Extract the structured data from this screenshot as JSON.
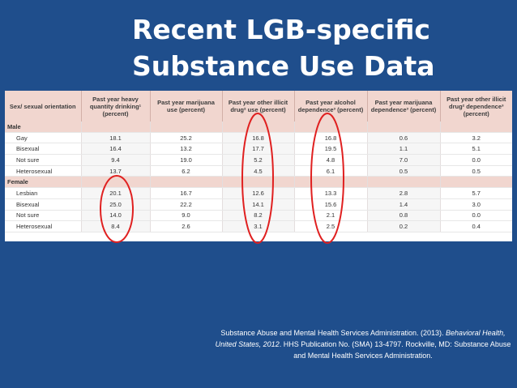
{
  "slide": {
    "title_line1": "Recent LGB-specific",
    "title_line2": "Substance Use Data"
  },
  "table": {
    "headers": [
      "Sex/ sexual orientation",
      "Past year heavy quantity drinking¹ (percent)",
      "Past year marijuana use (percent)",
      "Past year other illicit drug² use (percent)",
      "Past year alcohol dependence³ (percent)",
      "Past year marijuana dependence³ (percent)",
      "Past year other illicit drug² dependence³ (percent)"
    ],
    "groups": [
      {
        "label": "Male",
        "rows": [
          [
            "Gay",
            "18.1",
            "25.2",
            "16.8",
            "16.8",
            "0.6",
            "3.2"
          ],
          [
            "Bisexual",
            "16.4",
            "13.2",
            "17.7",
            "19.5",
            "1.1",
            "5.1"
          ],
          [
            "Not sure",
            "9.4",
            "19.0",
            "5.2",
            "4.8",
            "7.0",
            "0.0"
          ],
          [
            "Heterosexual",
            "13.7",
            "6.2",
            "4.5",
            "6.1",
            "0.5",
            "0.5"
          ]
        ]
      },
      {
        "label": "Female",
        "rows": [
          [
            "Lesbian",
            "20.1",
            "16.7",
            "12.6",
            "13.3",
            "2.8",
            "5.7"
          ],
          [
            "Bisexual",
            "25.0",
            "22.2",
            "14.1",
            "15.6",
            "1.4",
            "3.0"
          ],
          [
            "Not sure",
            "14.0",
            "9.0",
            "8.2",
            "2.1",
            "0.8",
            "0.0"
          ],
          [
            "Heterosexual",
            "8.4",
            "2.6",
            "3.1",
            "2.5",
            "0.2",
            "0.4"
          ]
        ]
      }
    ]
  },
  "citation": {
    "part1": "Substance Abuse and Mental Health Services Administration. (2013). ",
    "italic": "Behavioral Health, United States, 2012",
    "part2": ". HHS Publication No. (SMA) 13-4797. Rockville, MD: Substance Abuse and Mental Health Services Administration."
  },
  "colors": {
    "background": "#1f4e8c",
    "highlight_oval": "#e02020",
    "table_header": "#f1d6cf"
  }
}
